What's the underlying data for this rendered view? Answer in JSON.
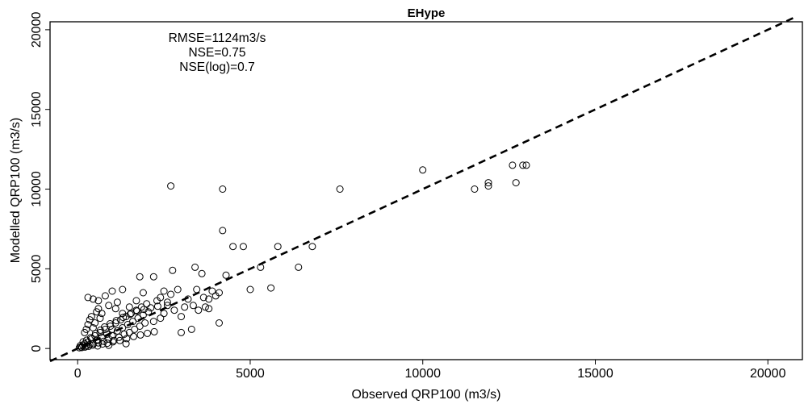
{
  "chart_data": {
    "type": "scatter",
    "title": "EHype",
    "xlabel": "Observed QRP100 (m3/s)",
    "ylabel": "Modelled QRP100 (m3/s)",
    "xlim": [
      -800,
      21000
    ],
    "ylim": [
      -700,
      20500
    ],
    "x_ticks": [
      0,
      5000,
      10000,
      15000,
      20000
    ],
    "y_ticks": [
      0,
      5000,
      10000,
      15000,
      20000
    ],
    "x_tick_labels": [
      "0",
      "5000",
      "10000",
      "15000",
      "20000"
    ],
    "y_tick_labels": [
      "0",
      "5000",
      "10000",
      "15000",
      "20000"
    ],
    "grid": false,
    "annotations": [
      "RMSE=1124m3/s",
      "NSE=0.75",
      "NSE(log)=0.7"
    ],
    "reference_line": {
      "style": "dashed",
      "x": [
        -800,
        20800
      ],
      "y": [
        -800,
        20800
      ]
    },
    "marker": "open-circle",
    "series": [
      {
        "points": [
          [
            100,
            100
          ],
          [
            150,
            200
          ],
          [
            200,
            300
          ],
          [
            250,
            150
          ],
          [
            300,
            400
          ],
          [
            350,
            250
          ],
          [
            400,
            600
          ],
          [
            450,
            300
          ],
          [
            500,
            800
          ],
          [
            550,
            500
          ],
          [
            600,
            350
          ],
          [
            650,
            1000
          ],
          [
            700,
            700
          ],
          [
            750,
            450
          ],
          [
            800,
            1200
          ],
          [
            850,
            900
          ],
          [
            900,
            600
          ],
          [
            950,
            1400
          ],
          [
            1000,
            800
          ],
          [
            1050,
            500
          ],
          [
            1100,
            1600
          ],
          [
            1150,
            1100
          ],
          [
            1200,
            700
          ],
          [
            1250,
            1800
          ],
          [
            1300,
            1300
          ],
          [
            1350,
            900
          ],
          [
            1400,
            2000
          ],
          [
            1450,
            1500
          ],
          [
            1500,
            1000
          ],
          [
            1550,
            2200
          ],
          [
            1600,
            1700
          ],
          [
            1650,
            1200
          ],
          [
            1700,
            2400
          ],
          [
            1750,
            1900
          ],
          [
            1800,
            1400
          ],
          [
            1850,
            2600
          ],
          [
            1900,
            2100
          ],
          [
            1950,
            1600
          ],
          [
            2000,
            2800
          ],
          [
            2050,
            2300
          ],
          [
            200,
            1000
          ],
          [
            250,
            1200
          ],
          [
            300,
            1500
          ],
          [
            350,
            1800
          ],
          [
            400,
            2000
          ],
          [
            450,
            1300
          ],
          [
            500,
            1600
          ],
          [
            550,
            2300
          ],
          [
            600,
            2500
          ],
          [
            650,
            1900
          ],
          [
            300,
            3200
          ],
          [
            450,
            3100
          ],
          [
            600,
            3000
          ],
          [
            800,
            3300
          ],
          [
            1000,
            3600
          ],
          [
            1150,
            2900
          ],
          [
            1300,
            3700
          ],
          [
            1500,
            2600
          ],
          [
            700,
            2200
          ],
          [
            900,
            2700
          ],
          [
            50,
            50
          ],
          [
            80,
            180
          ],
          [
            120,
            60
          ],
          [
            160,
            420
          ],
          [
            210,
            90
          ],
          [
            260,
            520
          ],
          [
            320,
            140
          ],
          [
            380,
            680
          ],
          [
            440,
            210
          ],
          [
            520,
            950
          ],
          [
            580,
            160
          ],
          [
            660,
            1150
          ],
          [
            720,
            280
          ],
          [
            780,
            1350
          ],
          [
            860,
            330
          ],
          [
            940,
            1550
          ],
          [
            1020,
            420
          ],
          [
            1120,
            1750
          ],
          [
            1220,
            500
          ],
          [
            1320,
            1950
          ],
          [
            1420,
            620
          ],
          [
            1520,
            2150
          ],
          [
            1620,
            750
          ],
          [
            1720,
            2350
          ],
          [
            1820,
            850
          ],
          [
            1920,
            2450
          ],
          [
            2020,
            950
          ],
          [
            2120,
            2550
          ],
          [
            2220,
            1050
          ],
          [
            2320,
            2650
          ],
          [
            2200,
            1700
          ],
          [
            2300,
            3000
          ],
          [
            2400,
            1900
          ],
          [
            2500,
            2200
          ],
          [
            2600,
            2700
          ],
          [
            2700,
            3400
          ],
          [
            2800,
            2400
          ],
          [
            2900,
            3700
          ],
          [
            3000,
            1000
          ],
          [
            3100,
            2600
          ],
          [
            3200,
            3100
          ],
          [
            3300,
            1200
          ],
          [
            3400,
            5100
          ],
          [
            3500,
            2400
          ],
          [
            3600,
            4700
          ],
          [
            3700,
            2600
          ],
          [
            3800,
            3100
          ],
          [
            3900,
            3600
          ],
          [
            4000,
            3300
          ],
          [
            4100,
            3500
          ],
          [
            2750,
            4900
          ],
          [
            2700,
            10200
          ],
          [
            1800,
            4500
          ],
          [
            2200,
            4500
          ],
          [
            2400,
            3200
          ],
          [
            4200,
            10000
          ],
          [
            4200,
            7400
          ],
          [
            4500,
            6400
          ],
          [
            4800,
            6400
          ],
          [
            4300,
            4600
          ],
          [
            5000,
            3700
          ],
          [
            5300,
            5100
          ],
          [
            5600,
            3800
          ],
          [
            5800,
            6400
          ],
          [
            6400,
            5100
          ],
          [
            6800,
            6400
          ],
          [
            7600,
            10000
          ],
          [
            10000,
            11200
          ],
          [
            11500,
            10000
          ],
          [
            11900,
            10400
          ],
          [
            11900,
            10200
          ],
          [
            12600,
            11500
          ],
          [
            12700,
            10400
          ],
          [
            12900,
            11500
          ],
          [
            13000,
            11500
          ],
          [
            1000,
            1200
          ],
          [
            1100,
            2500
          ],
          [
            1300,
            2200
          ],
          [
            1700,
            3000
          ],
          [
            1900,
            3500
          ],
          [
            2500,
            3600
          ],
          [
            2600,
            2900
          ],
          [
            3000,
            2000
          ],
          [
            3350,
            2700
          ],
          [
            3450,
            3700
          ],
          [
            3650,
            3200
          ],
          [
            3800,
            2500
          ],
          [
            4100,
            1600
          ],
          [
            900,
            200
          ],
          [
            1400,
            300
          ]
        ]
      }
    ]
  }
}
